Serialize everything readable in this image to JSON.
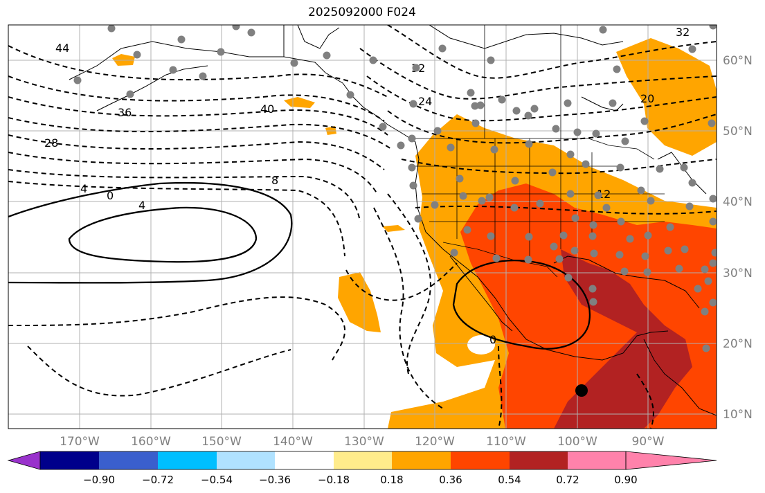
{
  "title": "2025092000 F024",
  "map": {
    "lon_labels": [
      "170°W",
      "160°W",
      "150°W",
      "140°W",
      "130°W",
      "120°W",
      "110°W",
      "100°W",
      "90°W"
    ],
    "lat_labels": [
      "60°N",
      "50°N",
      "40°N",
      "30°N",
      "20°N",
      "10°N"
    ],
    "contour_labels": [
      "44",
      "36",
      "28",
      "4",
      "0",
      "4",
      "40",
      "32",
      "24",
      "8",
      "20",
      "12",
      "0",
      "32"
    ],
    "colors": {
      "orange": "#ffa500",
      "orangered": "#ff4500",
      "firebrick": "#b22222",
      "contour": "#000000",
      "grid": "#b0b0b0",
      "station": "#808080"
    }
  },
  "colorbar": {
    "ticks": [
      "−0.90",
      "−0.72",
      "−0.54",
      "−0.36",
      "−0.18",
      "0.18",
      "0.36",
      "0.54",
      "0.72",
      "0.90"
    ],
    "colors": [
      "#9932cc",
      "#00008b",
      "#3a5fcd",
      "#00bfff",
      "#b0e2ff",
      "#ffffff",
      "#ffec8b",
      "#ffa500",
      "#ff4500",
      "#b22222",
      "#ff82ab"
    ]
  }
}
